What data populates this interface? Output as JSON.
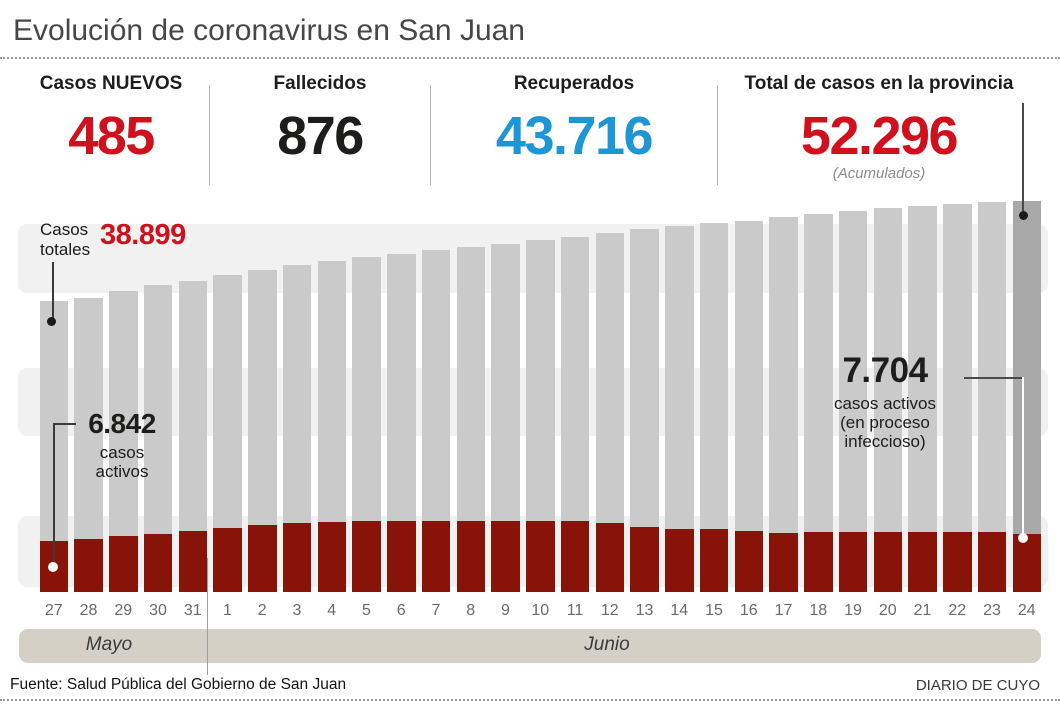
{
  "title": "Evolución de coronavirus en San Juan",
  "stats": [
    {
      "label": "Casos NUEVOS",
      "value": "485",
      "color": "#d1101e"
    },
    {
      "label": "Fallecidos",
      "value": "876",
      "color": "#1d1d1b"
    },
    {
      "label": "Recuperados",
      "value": "43.716",
      "color": "#1e95d4"
    },
    {
      "label": "Total de casos en la provincia",
      "value": "52.296",
      "note": "(Acumulados)",
      "color": "#d1101e"
    }
  ],
  "annotations": {
    "totals_label": "Casos\ntotales",
    "totals_value": "38.899",
    "totals_value_color": "#d1101e",
    "active_start_value": "6.842",
    "active_start_lines": "casos\nactivos",
    "active_end_value": "7.704",
    "active_end_lines": "casos activos\n(en proceso\ninfeccioso)"
  },
  "months": [
    {
      "label": "Mayo"
    },
    {
      "label": "Junio"
    }
  ],
  "footer": {
    "source": "Fuente: Salud Pública del Gobierno de San Juan",
    "credit": "DIARIO DE CUYO"
  },
  "chart_data": {
    "type": "bar",
    "title": "Evolución de coronavirus en San Juan",
    "categories": [
      "27",
      "28",
      "29",
      "30",
      "31",
      "1",
      "2",
      "3",
      "4",
      "5",
      "6",
      "7",
      "8",
      "9",
      "10",
      "11",
      "12",
      "13",
      "14",
      "15",
      "16",
      "17",
      "18",
      "19",
      "20",
      "21",
      "22",
      "23",
      "24"
    ],
    "x_groups": [
      {
        "label": "Mayo",
        "categories": [
          "27",
          "28",
          "29",
          "30",
          "31"
        ]
      },
      {
        "label": "Junio",
        "categories": [
          "1",
          "2",
          "3",
          "4",
          "5",
          "6",
          "7",
          "8",
          "9",
          "10",
          "11",
          "12",
          "13",
          "14",
          "15",
          "16",
          "17",
          "18",
          "19",
          "20",
          "21",
          "22",
          "23",
          "24"
        ]
      }
    ],
    "series": [
      {
        "name": "Casos totales",
        "color": "#cacaca",
        "values": [
          38899,
          39350,
          40250,
          41050,
          41600,
          42400,
          43050,
          43700,
          44250,
          44800,
          45270,
          45740,
          46140,
          46540,
          47080,
          47480,
          48010,
          48550,
          48950,
          49350,
          49620,
          50160,
          50560,
          50960,
          51360,
          51630,
          51900,
          52170,
          52296
        ]
      },
      {
        "name": "Casos activos (en proceso infeccioso)",
        "color": "#881308",
        "values": [
          6842,
          7090,
          7490,
          7820,
          8160,
          8560,
          8960,
          9230,
          9360,
          9430,
          9500,
          9500,
          9500,
          9430,
          9500,
          9430,
          9230,
          8760,
          8430,
          8390,
          8160,
          7850,
          8030,
          7990,
          8030,
          8030,
          8030,
          7990,
          7704
        ]
      }
    ],
    "last_bar_color": "#a8a8a8",
    "ylim": [
      0,
      52296
    ],
    "legend": "none",
    "grid": "horizontal-bands",
    "labeled_points": [
      {
        "series": "Casos totales",
        "category": "27",
        "value": 38899,
        "label": "38.899"
      },
      {
        "series": "Casos activos (en proceso infeccioso)",
        "category": "27",
        "value": 6842,
        "label": "6.842"
      },
      {
        "series": "Casos activos (en proceso infeccioso)",
        "category": "24",
        "value": 7704,
        "label": "7.704"
      },
      {
        "series": "Casos totales",
        "category": "24",
        "value": 52296,
        "label": "52.296"
      }
    ]
  }
}
